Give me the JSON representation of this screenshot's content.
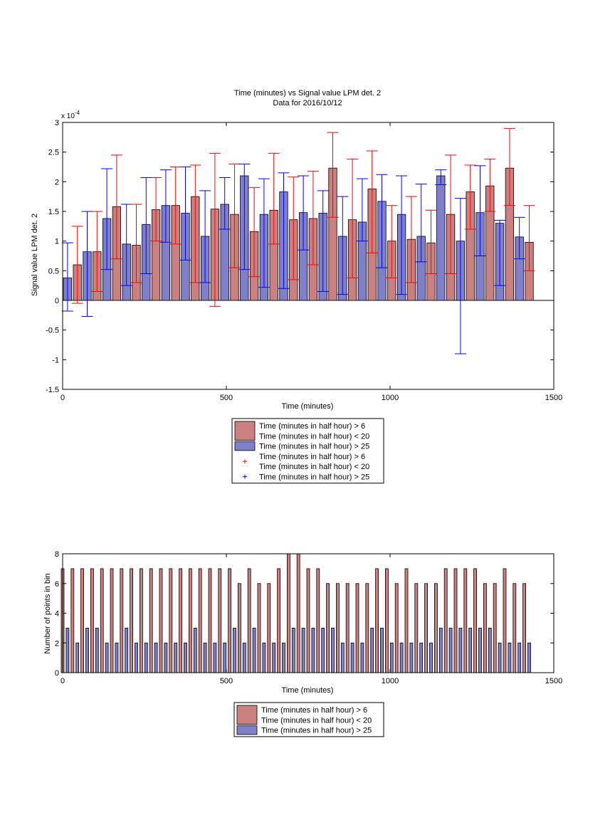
{
  "chart_data": [
    {
      "type": "bar",
      "title": "Time (minutes) vs Signal value LPM det. 2",
      "subtitle": "Data for 2016/10/12",
      "xlabel": "Time (minutes)",
      "ylabel": "Signal value LPM det. 2",
      "y_exponent_label": "x 10",
      "y_exponent_power": "-4",
      "xlim": [
        0,
        1500
      ],
      "ylim": [
        -1.5,
        3
      ],
      "xticks": [
        0,
        500,
        1000,
        1500
      ],
      "yticks": [
        -1.5,
        -1,
        -0.5,
        0,
        0.5,
        1,
        1.5,
        2,
        2.5,
        3
      ],
      "grid": false,
      "legend_placement": "below",
      "legend": [
        {
          "kind": "patch",
          "color": "#cc7f7f",
          "lines": [
            "Time (minutes in half hour) > 6",
            "Time (minutes in half hour) < 20"
          ]
        },
        {
          "kind": "patch",
          "color": "#7f7fcc",
          "lines": [
            "Time (minutes in half hour) > 25"
          ]
        },
        {
          "kind": "marker",
          "color": "#ff0000",
          "lines": [
            "Time (minutes in half hour) > 6",
            "Time (minutes in half hour) < 20"
          ]
        },
        {
          "kind": "marker",
          "color": "#0000ff",
          "lines": [
            "Time (minutes in half hour) > 25"
          ]
        }
      ],
      "series": [
        {
          "name": "Time (minutes in half hour) > 6 Time (minutes in half hour) < 20",
          "color": "#cc7f7f",
          "err_color": "#ff0000",
          "x": [
            45,
            105,
            165,
            225,
            285,
            345,
            405,
            465,
            525,
            585,
            645,
            705,
            765,
            825,
            885,
            945,
            1005,
            1065,
            1125,
            1185,
            1245,
            1305,
            1365,
            1425
          ],
          "values": [
            0.6,
            0.82,
            1.58,
            0.93,
            1.53,
            1.6,
            1.75,
            1.54,
            1.45,
            1.16,
            1.52,
            1.36,
            1.38,
            2.23,
            1.36,
            1.88,
            1.0,
            1.03,
            0.97,
            1.45,
            1.83,
            1.93,
            2.23,
            0.98
          ],
          "err_low": [
            -0.05,
            0.15,
            0.7,
            0.3,
            1.0,
            0.95,
            0.3,
            -0.1,
            0.55,
            0.4,
            0.95,
            0.35,
            0.6,
            1.4,
            0.38,
            0.8,
            0.38,
            0.3,
            0.45,
            0.45,
            1.2,
            1.5,
            1.6,
            0.5
          ],
          "err_high": [
            1.25,
            1.5,
            2.45,
            1.62,
            2.07,
            2.25,
            2.28,
            2.48,
            2.3,
            1.9,
            2.48,
            2.08,
            2.18,
            2.83,
            2.38,
            2.52,
            1.6,
            1.75,
            1.52,
            2.45,
            2.28,
            2.38,
            2.9,
            1.6
          ]
        },
        {
          "name": "Time (minutes in half hour) > 25",
          "color": "#7f7fcc",
          "err_color": "#0000ff",
          "x": [
            15,
            75,
            135,
            195,
            255,
            315,
            375,
            435,
            495,
            555,
            615,
            675,
            735,
            795,
            855,
            915,
            975,
            1035,
            1095,
            1155,
            1215,
            1275,
            1335,
            1395
          ],
          "values": [
            0.38,
            0.82,
            1.38,
            0.95,
            1.28,
            1.6,
            1.47,
            1.08,
            1.62,
            2.1,
            1.45,
            1.83,
            1.48,
            1.47,
            1.08,
            1.32,
            1.67,
            1.45,
            1.08,
            2.1,
            1.0,
            1.48,
            1.3,
            1.07
          ],
          "err_low": [
            -0.18,
            -0.27,
            0.52,
            0.25,
            0.45,
            0.98,
            0.68,
            0.3,
            1.2,
            0.52,
            0.22,
            0.2,
            0.85,
            0.15,
            0.1,
            1.0,
            0.55,
            0.1,
            0.65,
            1.95,
            -0.9,
            0.75,
            0.25,
            0.7
          ],
          "err_high": [
            0.97,
            1.5,
            2.22,
            1.62,
            2.07,
            2.2,
            2.25,
            1.85,
            2.07,
            2.3,
            2.05,
            2.15,
            2.1,
            1.85,
            1.75,
            2.05,
            2.12,
            2.1,
            1.96,
            2.2,
            1.72,
            2.27,
            1.35,
            1.4
          ]
        }
      ]
    },
    {
      "type": "bar",
      "title": "",
      "xlabel": "Time (minutes)",
      "ylabel": "Number of points in bin",
      "xlim": [
        0,
        1500
      ],
      "ylim": [
        0,
        8
      ],
      "xticks": [
        0,
        500,
        1000,
        1500
      ],
      "yticks": [
        0,
        2,
        4,
        6,
        8
      ],
      "grid": false,
      "legend_placement": "below",
      "legend": [
        {
          "kind": "patch",
          "color": "#cc7f7f",
          "lines": [
            "Time (minutes in half hour) > 6",
            "Time (minutes in half hour) < 20"
          ]
        },
        {
          "kind": "patch",
          "color": "#7f7fcc",
          "lines": [
            "Time (minutes in half hour) > 25"
          ]
        }
      ],
      "series": [
        {
          "name": "Time (minutes in half hour) > 6 Time (minutes in half hour) < 20",
          "color": "#cc7f7f",
          "x": [
            0,
            30,
            60,
            90,
            120,
            150,
            180,
            210,
            240,
            270,
            300,
            330,
            360,
            390,
            420,
            450,
            480,
            510,
            540,
            570,
            600,
            630,
            660,
            690,
            720,
            750,
            780,
            810,
            840,
            870,
            900,
            930,
            960,
            990,
            1020,
            1050,
            1080,
            1110,
            1140,
            1170,
            1200,
            1230,
            1260,
            1290,
            1320,
            1350,
            1380,
            1410
          ],
          "values": [
            7,
            7,
            7,
            7,
            7,
            7,
            7,
            7,
            7,
            7,
            7,
            7,
            7,
            7,
            7,
            7,
            7,
            7,
            6,
            7,
            6,
            6,
            7,
            8,
            8,
            7,
            7,
            6,
            6,
            6,
            6,
            6,
            7,
            7,
            6,
            7,
            6,
            6,
            6,
            7,
            7,
            7,
            7,
            6,
            6,
            7,
            6,
            6
          ]
        },
        {
          "name": "Time (minutes in half hour) > 25",
          "color": "#7f7fcc",
          "x": [
            15,
            45,
            75,
            105,
            135,
            165,
            195,
            225,
            255,
            285,
            315,
            345,
            375,
            405,
            435,
            465,
            495,
            525,
            555,
            585,
            615,
            645,
            675,
            705,
            735,
            765,
            795,
            825,
            855,
            885,
            915,
            945,
            975,
            1005,
            1035,
            1065,
            1095,
            1125,
            1155,
            1185,
            1215,
            1245,
            1275,
            1305,
            1335,
            1365,
            1395,
            1425
          ],
          "values": [
            3,
            2,
            3,
            3,
            2,
            2,
            3,
            2,
            2,
            2,
            2,
            2,
            2,
            3,
            2,
            2,
            2,
            3,
            2,
            3,
            2,
            2,
            2,
            3,
            3,
            3,
            3,
            3,
            2,
            2,
            2,
            3,
            3,
            2,
            2,
            2,
            2,
            2,
            3,
            3,
            3,
            3,
            3,
            3,
            2,
            2,
            2,
            2
          ]
        }
      ]
    }
  ]
}
